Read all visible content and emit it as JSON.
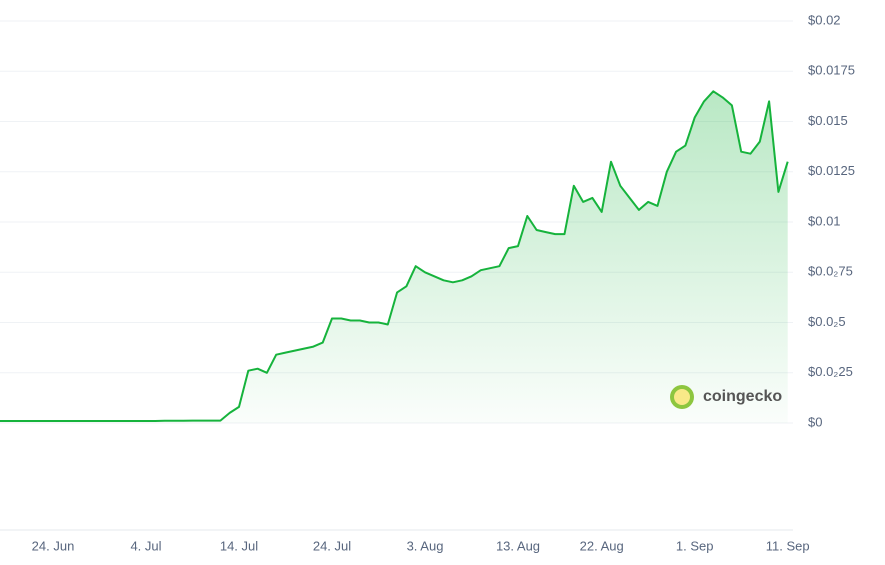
{
  "chart_data": {
    "type": "area-line",
    "watermark": "coingecko",
    "x": [
      "18. Jun",
      "19. Jun",
      "20. Jun",
      "21. Jun",
      "22. Jun",
      "23. Jun",
      "24. Jun",
      "25. Jun",
      "26. Jun",
      "27. Jun",
      "28. Jun",
      "29. Jun",
      "30. Jun",
      "1. Jul",
      "2. Jul",
      "3. Jul",
      "4. Jul",
      "5. Jul",
      "6. Jul",
      "7. Jul",
      "8. Jul",
      "9. Jul",
      "10. Jul",
      "11. Jul",
      "12. Jul",
      "13. Jul",
      "14. Jul",
      "15. Jul",
      "16. Jul",
      "17. Jul",
      "18. Jul",
      "19. Jul",
      "20. Jul",
      "21. Jul",
      "22. Jul",
      "23. Jul",
      "24. Jul",
      "25. Jul",
      "26. Jul",
      "27. Jul",
      "28. Jul",
      "29. Jul",
      "30. Jul",
      "31. Jul",
      "1. Aug",
      "2. Aug",
      "3. Aug",
      "4. Aug",
      "5. Aug",
      "6. Aug",
      "7. Aug",
      "8. Aug",
      "9. Aug",
      "10. Aug",
      "11. Aug",
      "12. Aug",
      "13. Aug",
      "14. Aug",
      "15. Aug",
      "16. Aug",
      "17. Aug",
      "18. Aug",
      "19. Aug",
      "20. Aug",
      "21. Aug",
      "22. Aug",
      "23. Aug",
      "24. Aug",
      "25. Aug",
      "26. Aug",
      "27. Aug",
      "28. Aug",
      "29. Aug",
      "30. Aug",
      "31. Aug",
      "1. Sep",
      "2. Sep",
      "3. Sep",
      "4. Sep",
      "5. Sep",
      "6. Sep",
      "7. Sep",
      "8. Sep",
      "9. Sep",
      "10. Sep",
      "11. Sep"
    ],
    "series": [
      {
        "color": "#16b33c",
        "values": [
          0.0001,
          0.0001,
          0.0001,
          0.0001,
          0.0001,
          0.0001,
          0.0001,
          0.0001,
          0.0001,
          0.0001,
          0.0001,
          0.0001,
          0.0001,
          0.0001,
          0.0001,
          0.0001,
          0.0001,
          0.0001,
          0.00011,
          0.00011,
          0.00011,
          0.00012,
          0.00012,
          0.00012,
          0.00012,
          0.0005,
          0.0008,
          0.0026,
          0.0027,
          0.0025,
          0.0034,
          0.0035,
          0.0036,
          0.0037,
          0.0038,
          0.004,
          0.0052,
          0.0052,
          0.0051,
          0.0051,
          0.005,
          0.005,
          0.0049,
          0.0065,
          0.0068,
          0.0078,
          0.0075,
          0.0073,
          0.0071,
          0.007,
          0.0071,
          0.0073,
          0.0076,
          0.0077,
          0.0078,
          0.0087,
          0.0088,
          0.0103,
          0.0096,
          0.0095,
          0.0094,
          0.0094,
          0.0118,
          0.011,
          0.0112,
          0.0105,
          0.013,
          0.0118,
          0.0112,
          0.0106,
          0.011,
          0.0108,
          0.0125,
          0.0135,
          0.0138,
          0.0152,
          0.016,
          0.0165,
          0.0162,
          0.0158,
          0.0135,
          0.0134,
          0.014,
          0.016,
          0.0115,
          0.013
        ]
      }
    ],
    "xticks": [
      "24. Jun",
      "4. Jul",
      "14. Jul",
      "24. Jul",
      "3. Aug",
      "13. Aug",
      "22. Aug",
      "1. Sep",
      "11. Sep"
    ],
    "ylim": [
      0,
      0.02
    ],
    "yticks": [
      {
        "value": 0,
        "label": "$0"
      },
      {
        "value": 0.0025,
        "label": "$0.0₂25"
      },
      {
        "value": 0.005,
        "label": "$0.0₂5"
      },
      {
        "value": 0.0075,
        "label": "$0.0₂75"
      },
      {
        "value": 0.01,
        "label": "$0.01"
      },
      {
        "value": 0.0125,
        "label": "$0.0125"
      },
      {
        "value": 0.015,
        "label": "$0.015"
      },
      {
        "value": 0.0175,
        "label": "$0.0175"
      },
      {
        "value": 0.02,
        "label": "$0.02"
      }
    ],
    "grid": true
  }
}
